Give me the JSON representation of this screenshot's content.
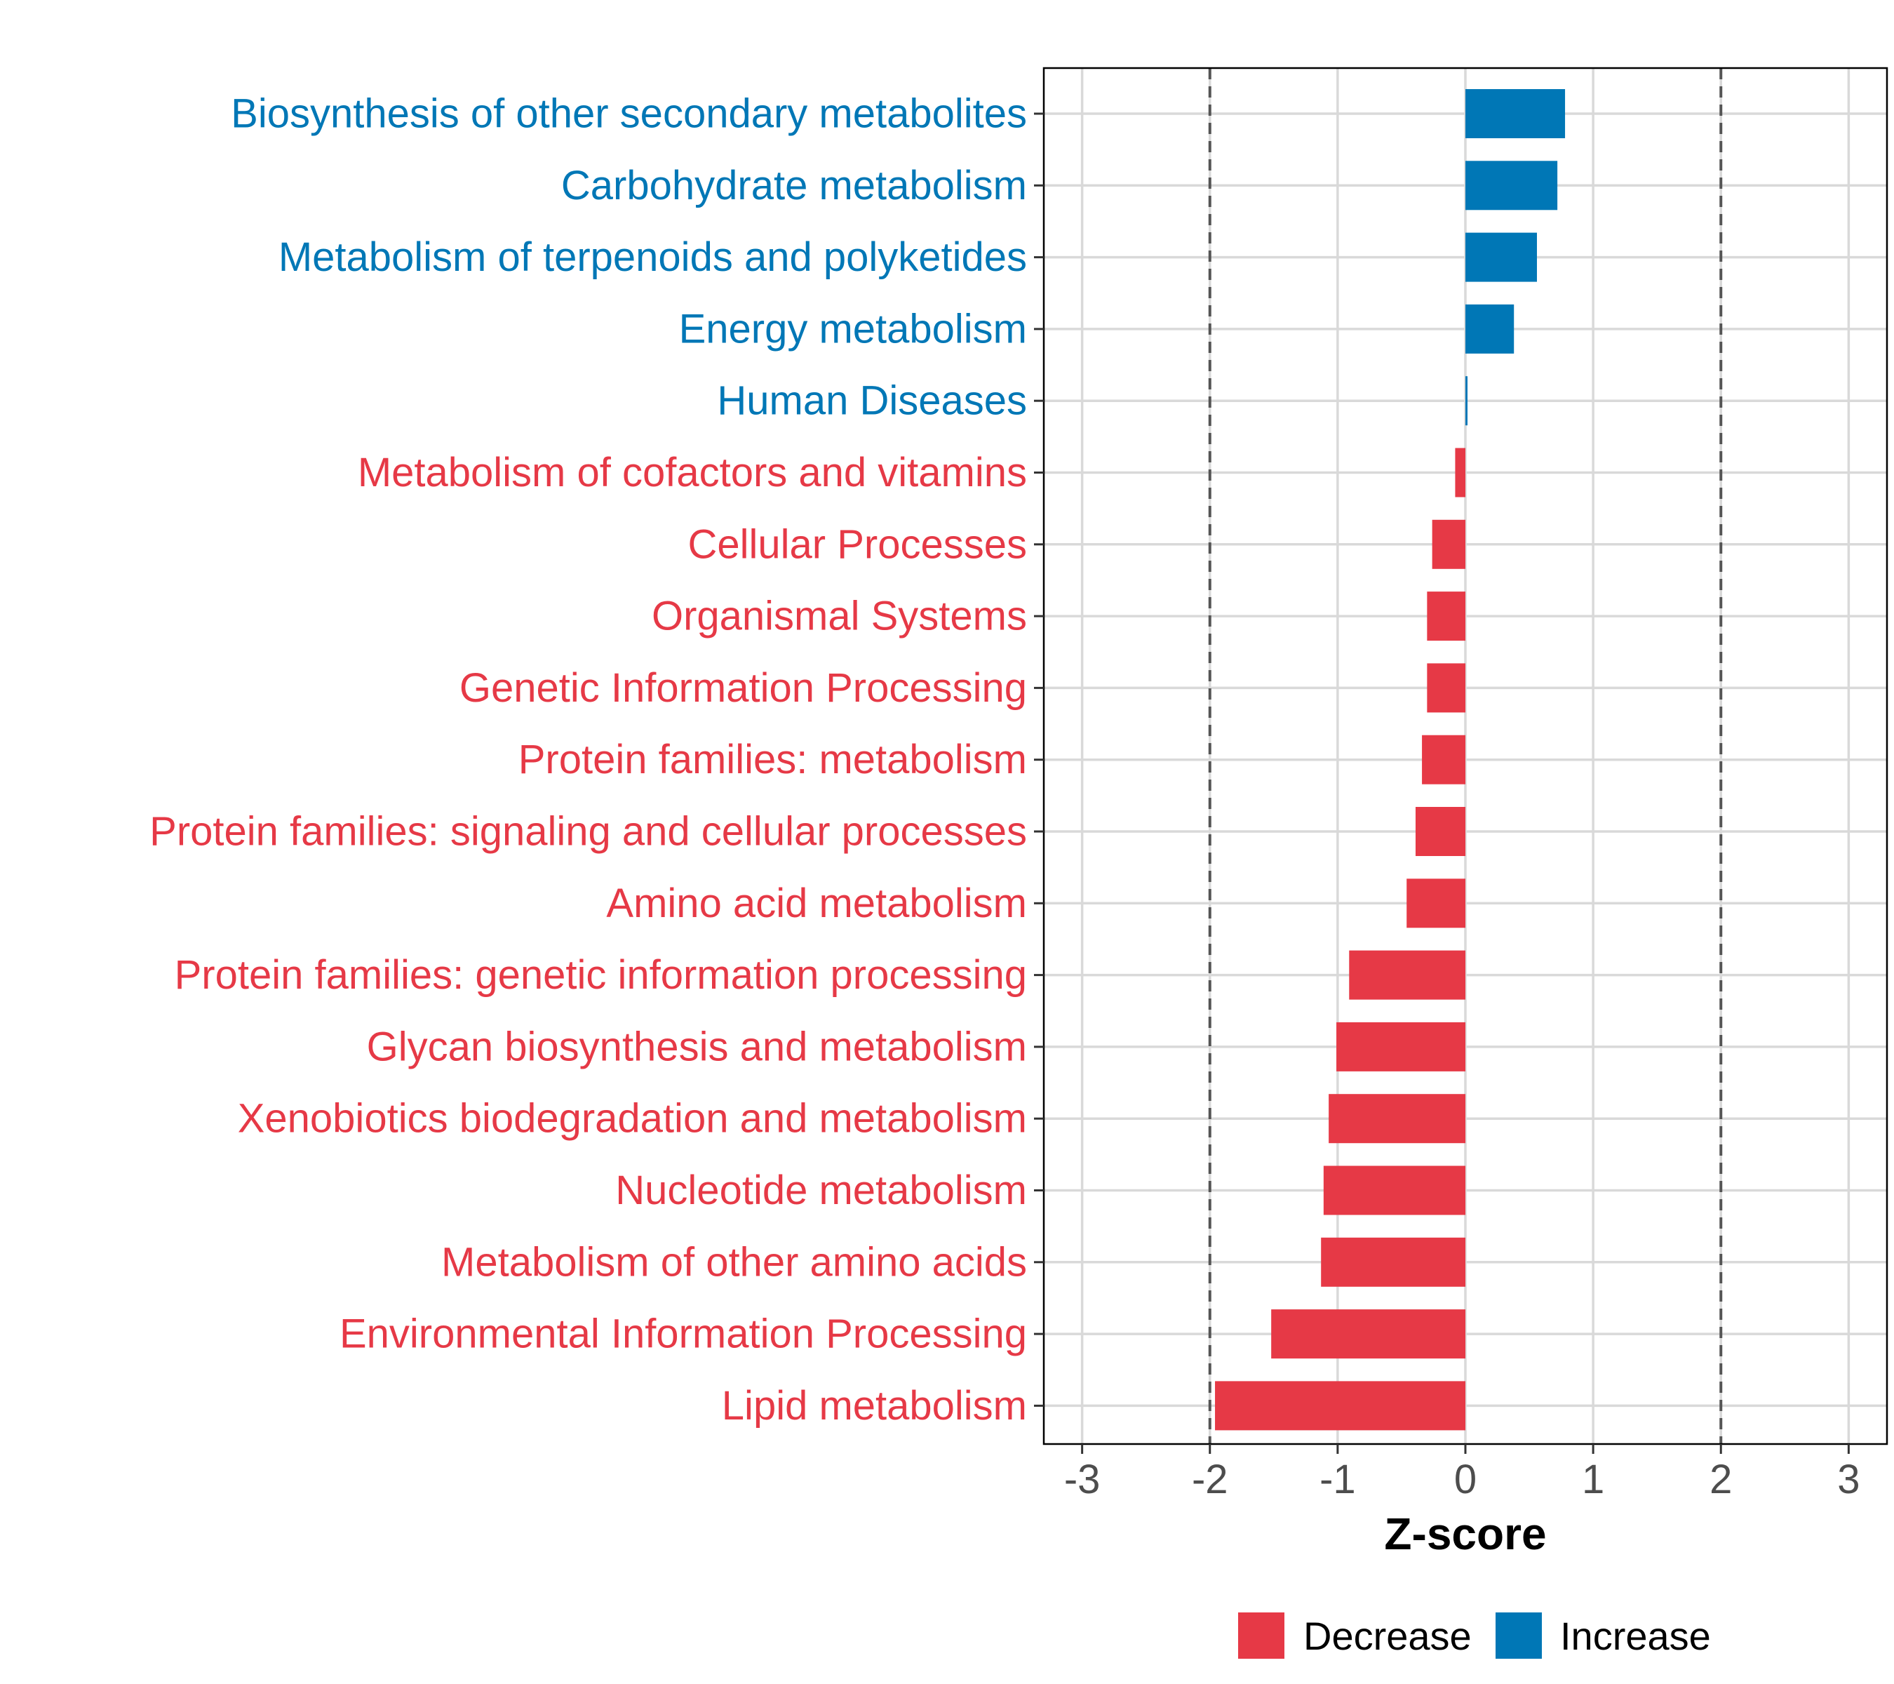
{
  "colors": {
    "decrease": "#E63946",
    "increase": "#0077B6",
    "grid": "#D9D9D9",
    "threshold": "#555555",
    "axis_text": "#4D4D4D",
    "axis_title": "#000000"
  },
  "chart_data": {
    "type": "bar",
    "orientation": "horizontal",
    "xlabel": "Z-score",
    "xlim": [
      -3.3,
      3.3
    ],
    "xticks": [
      -3,
      -2,
      -1,
      0,
      1,
      2,
      3
    ],
    "xtick_labels": [
      "-3",
      "-2",
      "-1",
      "0",
      "1",
      "2",
      "3"
    ],
    "threshold_lines": [
      -2,
      2
    ],
    "grid": true,
    "legend_position": "bottom",
    "legend": [
      {
        "label": "Decrease",
        "color_key": "decrease"
      },
      {
        "label": "Increase",
        "color_key": "increase"
      }
    ],
    "categories": [
      "Biosynthesis of other secondary metabolites",
      "Carbohydrate metabolism",
      "Metabolism of terpenoids and polyketides",
      "Energy metabolism",
      "Human Diseases",
      "Metabolism of cofactors and vitamins",
      "Cellular Processes",
      "Organismal Systems",
      "Genetic Information Processing",
      "Protein families: metabolism",
      "Protein families: signaling and cellular processes",
      "Amino acid metabolism",
      "Protein families: genetic information processing",
      "Glycan biosynthesis and metabolism",
      "Xenobiotics biodegradation and metabolism",
      "Nucleotide metabolism",
      "Metabolism of other amino acids",
      "Environmental Information Processing",
      "Lipid metabolism"
    ],
    "values": [
      0.78,
      0.72,
      0.56,
      0.38,
      0.01,
      -0.08,
      -0.26,
      -0.3,
      -0.3,
      -0.34,
      -0.39,
      -0.46,
      -0.91,
      -1.01,
      -1.07,
      -1.11,
      -1.13,
      -1.52,
      -1.96
    ],
    "direction": [
      "Increase",
      "Increase",
      "Increase",
      "Increase",
      "Increase",
      "Decrease",
      "Decrease",
      "Decrease",
      "Decrease",
      "Decrease",
      "Decrease",
      "Decrease",
      "Decrease",
      "Decrease",
      "Decrease",
      "Decrease",
      "Decrease",
      "Decrease",
      "Decrease"
    ]
  }
}
